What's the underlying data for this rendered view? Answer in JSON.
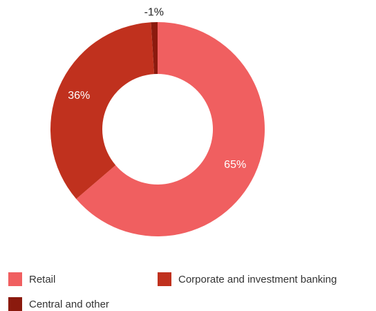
{
  "chart_data": {
    "type": "pie",
    "variant": "donut",
    "title": "",
    "series": [
      {
        "name": "Retail",
        "value": 65,
        "label": "65%",
        "color": "#f05f60"
      },
      {
        "name": "Corporate and investment banking",
        "value": 36,
        "label": "36%",
        "color": "#c0311e"
      },
      {
        "name": "Central and other",
        "value": -1,
        "label": "-1%",
        "color": "#8b1a0e"
      }
    ],
    "legend": {
      "placement": "bottom",
      "items": [
        {
          "label": "Retail",
          "color": "#f05f60"
        },
        {
          "label": "Corporate and investment banking",
          "color": "#c0311e"
        },
        {
          "label": "Central and other",
          "color": "#8b1a0e"
        }
      ]
    }
  }
}
